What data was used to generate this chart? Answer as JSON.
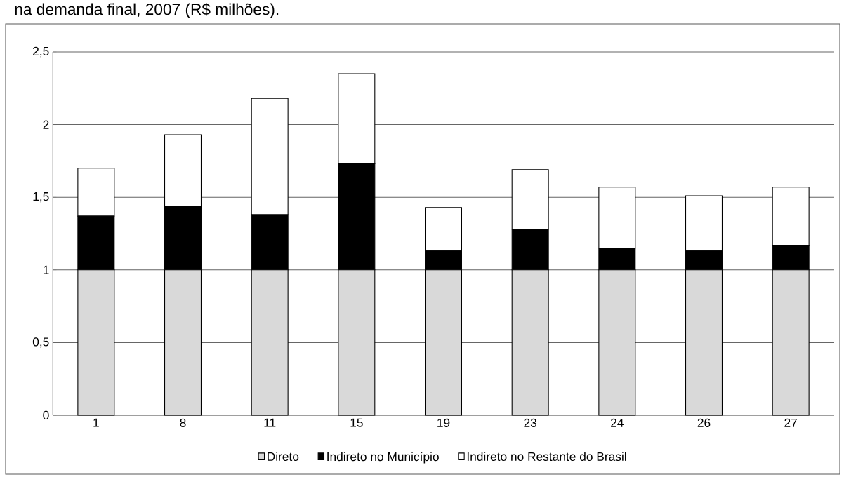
{
  "chart_data": {
    "type": "bar",
    "title": "na demanda final, 2007 (R$ milhões).",
    "categories": [
      "1",
      "8",
      "11",
      "15",
      "19",
      "23",
      "24",
      "26",
      "27"
    ],
    "stacked": true,
    "series": [
      {
        "name": "Direto",
        "color": "#d9d9d9",
        "values": [
          1,
          1,
          1,
          1,
          1,
          1,
          1,
          1,
          1
        ]
      },
      {
        "name": "Indireto no Município",
        "color": "#000000",
        "values": [
          0.37,
          0.44,
          0.38,
          0.73,
          0.13,
          0.28,
          0.15,
          0.13,
          0.17
        ]
      },
      {
        "name": "Indireto no Restante do Brasil",
        "color": "#ffffff",
        "values": [
          0.33,
          0.49,
          0.8,
          0.62,
          0.3,
          0.41,
          0.42,
          0.38,
          0.4
        ]
      }
    ],
    "ylim": [
      0,
      2.5
    ],
    "yticks": [
      0,
      {
        "value": 0.5,
        "label": "0,5"
      },
      1,
      {
        "value": 1.5,
        "label": "1,5"
      },
      2,
      {
        "value": 2.5,
        "label": "2,5"
      }
    ],
    "grid": "y",
    "legend": "bottom"
  }
}
